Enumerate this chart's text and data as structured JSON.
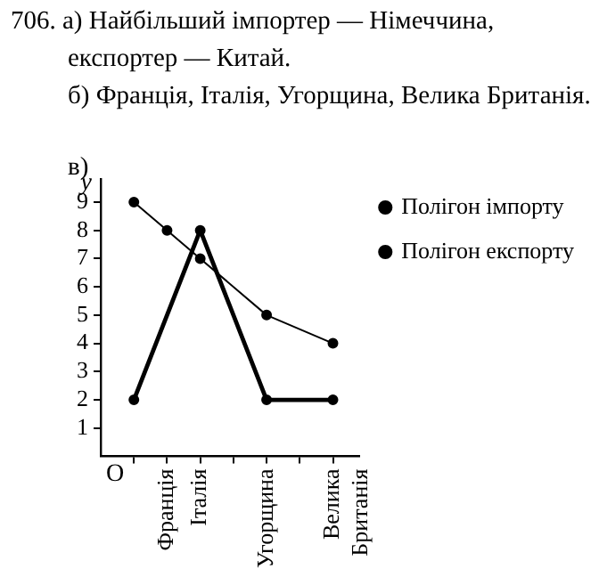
{
  "chart_data": {
    "type": "line",
    "title": "706. а) Найбільший імпортер — Німеччина, експортер — Китай.",
    "subtitle": "б) Франція, Італія, Угорщина, Велика Британія.",
    "ylabel": "y",
    "annotations": [
      "в)",
      "O"
    ],
    "categories": [
      null,
      "Франція",
      "Італія",
      null,
      "Угорщина",
      null,
      "Велика Британія"
    ],
    "ylim": [
      0,
      9.8
    ],
    "yticks": [
      1,
      2,
      3,
      4,
      5,
      6,
      7,
      8,
      9
    ],
    "grid": false,
    "legend": "right",
    "marker": "circle",
    "series": [
      {
        "name": "Полігон імпорту",
        "color": "#000000",
        "values": [
          9,
          8,
          7,
          null,
          5,
          null,
          4
        ]
      },
      {
        "name": "Полігон експорту",
        "color": "#000000",
        "values": [
          2,
          null,
          8,
          null,
          2,
          null,
          2
        ]
      }
    ]
  }
}
